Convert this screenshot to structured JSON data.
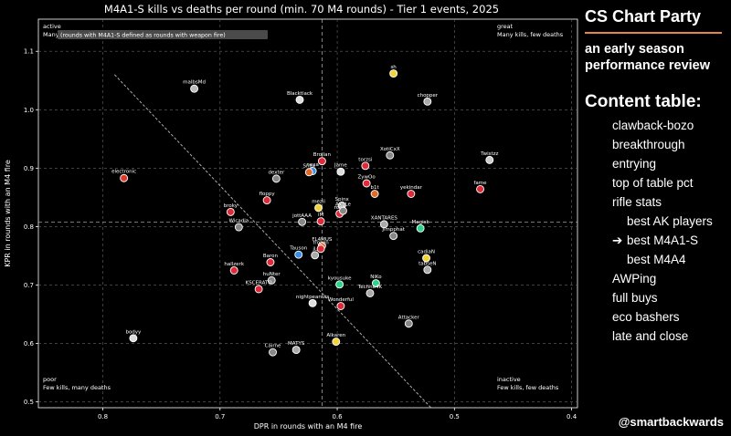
{
  "chart_data": {
    "type": "scatter",
    "title": "M4A1-S kills vs deaths per round (min. 70 M4 rounds) - Tier 1 events, 2025",
    "xlabel": "DPR in rounds with an M4 fire",
    "ylabel": "KPR in rounds with an M4 fire",
    "xlim": [
      0.855,
      0.395
    ],
    "ylim": [
      0.49,
      1.155
    ],
    "x_reversed": true,
    "xticks": [
      0.8,
      0.7,
      0.6,
      0.5,
      0.4
    ],
    "yticks": [
      0.5,
      0.6,
      0.7,
      0.8,
      0.9,
      1.0,
      1.1
    ],
    "grid": true,
    "note": "(rounds with M4A1-S defined as rounds with weapon fire)",
    "corners": {
      "top_left": {
        "title": "active",
        "desc": "Many kills, many deaths"
      },
      "top_right": {
        "title": "great",
        "desc": "Many kills, few deaths"
      },
      "bottom_left": {
        "title": "poor",
        "desc": "Few kills, many deaths"
      },
      "bottom_right": {
        "title": "inactive",
        "desc": "Few kills, few deaths"
      }
    },
    "reference_line": {
      "x": [
        0.79,
        0.52
      ],
      "y": [
        1.06,
        0.49
      ]
    },
    "players": [
      {
        "name": "malbsMd",
        "x": 0.722,
        "y": 1.036,
        "color": "#bbbbbb"
      },
      {
        "name": "Blacktlack",
        "x": 0.632,
        "y": 1.017,
        "color": "#dddddd"
      },
      {
        "name": "sh",
        "x": 0.552,
        "y": 1.062,
        "color": "#f2d43a"
      },
      {
        "name": "chopper",
        "x": 0.523,
        "y": 1.014,
        "color": "#aaaaaa"
      },
      {
        "name": "electronic",
        "x": 0.782,
        "y": 0.883,
        "color": "#e0392a"
      },
      {
        "name": "XotiCxX",
        "x": 0.555,
        "y": 0.922,
        "color": "#888888"
      },
      {
        "name": "Twistzz",
        "x": 0.47,
        "y": 0.914,
        "color": "#cccccc"
      },
      {
        "name": "Brollan",
        "x": 0.613,
        "y": 0.912,
        "color": "#e02a3a"
      },
      {
        "name": "Jame",
        "x": 0.597,
        "y": 0.894,
        "color": "#dddddd"
      },
      {
        "name": "nexa",
        "x": 0.621,
        "y": 0.895,
        "color": "#3a8de0"
      },
      {
        "name": "Snax",
        "x": 0.624,
        "y": 0.893,
        "color": "#e06c2a"
      },
      {
        "name": "torzsi",
        "x": 0.576,
        "y": 0.904,
        "color": "#e02a3a"
      },
      {
        "name": "dexter",
        "x": 0.652,
        "y": 0.882,
        "color": "#888888"
      },
      {
        "name": "fame",
        "x": 0.478,
        "y": 0.864,
        "color": "#e02a3a"
      },
      {
        "name": "ZywOo",
        "x": 0.575,
        "y": 0.874,
        "color": "#e02a3a"
      },
      {
        "name": "b1t",
        "x": 0.568,
        "y": 0.856,
        "color": "#e06c2a"
      },
      {
        "name": "yekindar",
        "x": 0.537,
        "y": 0.856,
        "color": "#e02a3a"
      },
      {
        "name": "floppy",
        "x": 0.66,
        "y": 0.845,
        "color": "#e02a3a"
      },
      {
        "name": "Spinx",
        "x": 0.596,
        "y": 0.836,
        "color": "#aaaaaa"
      },
      {
        "name": "mezii",
        "x": 0.616,
        "y": 0.832,
        "color": "#f2d43a"
      },
      {
        "name": "ropz",
        "x": 0.598,
        "y": 0.822,
        "color": "#e02a3a"
      },
      {
        "name": "Ax1Le",
        "x": 0.595,
        "y": 0.827,
        "color": "#888888"
      },
      {
        "name": "broky",
        "x": 0.691,
        "y": 0.825,
        "color": "#e02a3a"
      },
      {
        "name": "jottAAA",
        "x": 0.63,
        "y": 0.808,
        "color": "#888888"
      },
      {
        "name": "iM",
        "x": 0.614,
        "y": 0.809,
        "color": "#e02a3a"
      },
      {
        "name": "Wicadia",
        "x": 0.684,
        "y": 0.799,
        "color": "#888888"
      },
      {
        "name": "XANTARES",
        "x": 0.56,
        "y": 0.804,
        "color": "#aaaaaa"
      },
      {
        "name": "Magisk",
        "x": 0.529,
        "y": 0.797,
        "color": "#2ad48a"
      },
      {
        "name": "Jimpphat",
        "x": 0.552,
        "y": 0.784,
        "color": "#888888"
      },
      {
        "name": "FL4MUS",
        "x": 0.613,
        "y": 0.767,
        "color": "#e06c2a"
      },
      {
        "name": "frozen",
        "x": 0.614,
        "y": 0.762,
        "color": "#e02a3a"
      },
      {
        "name": "Tauson",
        "x": 0.633,
        "y": 0.752,
        "color": "#3a8de0"
      },
      {
        "name": "jL",
        "x": 0.619,
        "y": 0.751,
        "color": "#aaaaaa"
      },
      {
        "name": "cadiaN",
        "x": 0.524,
        "y": 0.746,
        "color": "#f2d43a"
      },
      {
        "name": "tabseN",
        "x": 0.523,
        "y": 0.726,
        "color": "#aaaaaa"
      },
      {
        "name": "Baron",
        "x": 0.657,
        "y": 0.739,
        "color": "#e02a3a"
      },
      {
        "name": "hallzerk",
        "x": 0.688,
        "y": 0.725,
        "color": "#e02a3a"
      },
      {
        "name": "huNter",
        "x": 0.656,
        "y": 0.708,
        "color": "#888888"
      },
      {
        "name": "KSCERATO",
        "x": 0.667,
        "y": 0.693,
        "color": "#e02a3a"
      },
      {
        "name": "kyousuke",
        "x": 0.598,
        "y": 0.701,
        "color": "#2ad48a"
      },
      {
        "name": "NiKo",
        "x": 0.567,
        "y": 0.703,
        "color": "#2ad48a"
      },
      {
        "name": "Techno4K",
        "x": 0.572,
        "y": 0.686,
        "color": "#aaaaaa"
      },
      {
        "name": "nightpeanuts",
        "x": 0.621,
        "y": 0.669,
        "color": "#dddddd"
      },
      {
        "name": "Wonderful",
        "x": 0.597,
        "y": 0.664,
        "color": "#e02a3a"
      },
      {
        "name": "Attacker",
        "x": 0.539,
        "y": 0.634,
        "color": "#888888"
      },
      {
        "name": "bodyy",
        "x": 0.774,
        "y": 0.609,
        "color": "#dddddd"
      },
      {
        "name": "Alkaren",
        "x": 0.601,
        "y": 0.603,
        "color": "#f2d43a"
      },
      {
        "name": "MATYS",
        "x": 0.635,
        "y": 0.589,
        "color": "#aaaaaa"
      },
      {
        "name": "Cairne",
        "x": 0.655,
        "y": 0.585,
        "color": "#888888"
      }
    ]
  },
  "sidebar": {
    "title": "CS Chart Party",
    "subtitle_line1": "an early season",
    "subtitle_line2": "performance review",
    "toc_title": "Content table:",
    "items": [
      {
        "label": "clawback-bozo",
        "level": 0,
        "current": false
      },
      {
        "label": "breakthrough",
        "level": 0,
        "current": false
      },
      {
        "label": "entrying",
        "level": 0,
        "current": false
      },
      {
        "label": "top of table pct",
        "level": 0,
        "current": false
      },
      {
        "label": "rifle stats",
        "level": 0,
        "current": false
      },
      {
        "label": "best AK players",
        "level": 1,
        "current": false
      },
      {
        "label": "best M4A1-S",
        "level": 1,
        "current": true
      },
      {
        "label": "best M4A4",
        "level": 1,
        "current": false
      },
      {
        "label": "AWPing",
        "level": 0,
        "current": false
      },
      {
        "label": "full buys",
        "level": 0,
        "current": false
      },
      {
        "label": "eco bashers",
        "level": 0,
        "current": false
      },
      {
        "label": "late and close",
        "level": 0,
        "current": false
      }
    ],
    "current_marker": "➔"
  },
  "footer": {
    "handle": "@smartbackwards"
  }
}
